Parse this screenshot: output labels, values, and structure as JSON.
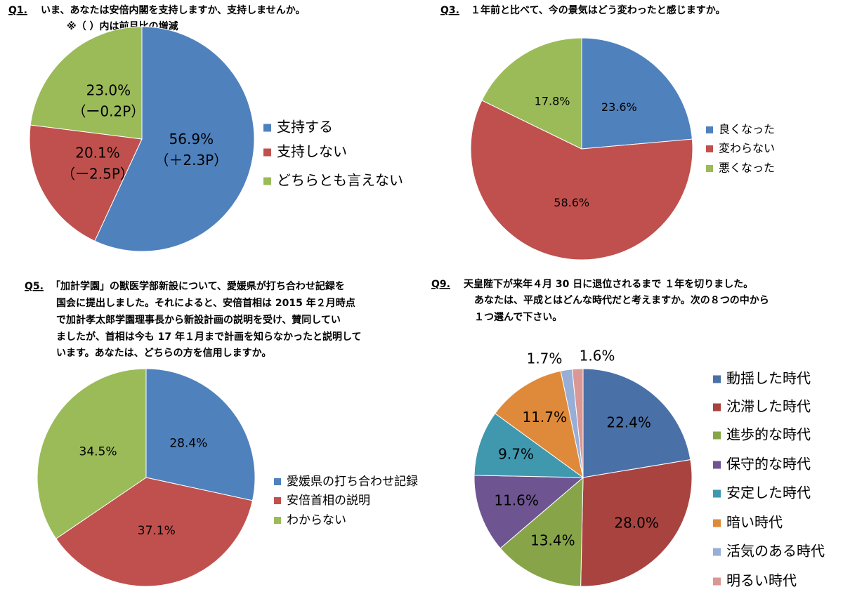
{
  "chart_data": [
    {
      "type": "pie",
      "label": "Q1.",
      "title": [
        "いま、あなたは安倍内閣を支持しますか、支持しませんか。"
      ],
      "subtitle": "※（ ）内は前月比の増減",
      "categories": [
        "支持する",
        "支持しない",
        "どちらとも言えない"
      ],
      "values": [
        56.9,
        20.1,
        23.0
      ],
      "value_labels": [
        "56.9%",
        "20.1%",
        "23.0%"
      ],
      "changes": [
        "（＋2.3P）",
        "（ー2.5P）",
        "（ー0.2P）"
      ],
      "colors": [
        "#4f81bd",
        "#c0504d",
        "#9bbb59"
      ]
    },
    {
      "type": "pie",
      "label": "Q3.",
      "title": [
        "１年前と比べて、今の景気はどう変わったと感じますか。"
      ],
      "categories": [
        "良くなった",
        "変わらない",
        "悪くなった"
      ],
      "values": [
        23.6,
        58.6,
        17.8
      ],
      "value_labels": [
        "23.6%",
        "58.6%",
        "17.8%"
      ],
      "colors": [
        "#4f81bd",
        "#c0504d",
        "#9bbb59"
      ]
    },
    {
      "type": "pie",
      "label": "Q5.",
      "title": [
        "「加計学園」の獣医学部新設について、愛媛県が打ち合わせ記録を",
        "国会に提出しました。それによると、安倍首相は 2015 年２月時点",
        "で加計孝太郎学園理事長から新設計画の説明を受け、賛同してい",
        "ましたが、首相は今も 17 年１月まで計画を知らなかったと説明して",
        "います。あなたは、どちらの方を信用しますか。"
      ],
      "categories": [
        "愛媛県の打ち合わせ記録",
        "安倍首相の説明",
        "わからない"
      ],
      "values": [
        28.4,
        37.1,
        34.5
      ],
      "value_labels": [
        "28.4%",
        "37.1%",
        "34.5%"
      ],
      "colors": [
        "#4f81bd",
        "#c0504d",
        "#9bbb59"
      ]
    },
    {
      "type": "pie",
      "label": "Q9.",
      "title": [
        "天皇陛下が来年４月 30 日に退位されるまで １年を切りました。",
        "あなたは、平成とはどんな時代だと考えますか。次の８つの中から",
        "１つ選んで下さい。"
      ],
      "categories": [
        "動揺した時代",
        "沈滞した時代",
        "進歩的な時代",
        "保守的な時代",
        "安定した時代",
        "暗い時代",
        "活気のある時代",
        "明るい時代"
      ],
      "values": [
        22.4,
        28.0,
        13.4,
        11.6,
        9.7,
        11.7,
        1.7,
        1.6
      ],
      "value_labels": [
        "22.4%",
        "28.0%",
        "13.4%",
        "11.6%",
        "9.7%",
        "11.7%",
        "1.7%",
        "1.6%"
      ],
      "colors": [
        "#4a70a8",
        "#a84340",
        "#87a548",
        "#6e5592",
        "#3f98ae",
        "#df8a3a",
        "#97aed6",
        "#d99795"
      ]
    }
  ]
}
